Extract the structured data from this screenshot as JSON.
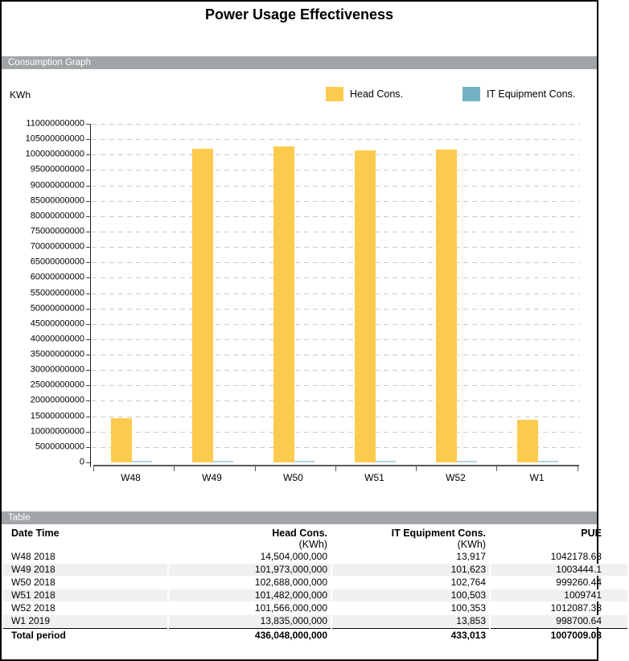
{
  "page": {
    "title": "Power Usage Effectiveness"
  },
  "sections": {
    "graph": "Consumption Graph",
    "table": "Table"
  },
  "chart": {
    "unit_label": "KWh",
    "legend": [
      {
        "label": "Head Cons.",
        "color": "#FCCB4D"
      },
      {
        "label": "IT Equipment Cons.",
        "color": "#74B2C3"
      }
    ]
  },
  "chart_data": {
    "type": "bar",
    "title": "Consumption Graph",
    "xlabel": "",
    "ylabel": "KWh",
    "categories": [
      "W48",
      "W49",
      "W50",
      "W51",
      "W52",
      "W1"
    ],
    "series": [
      {
        "name": "Head Cons.",
        "color": "#FCCB4D",
        "values": [
          14504000000,
          101973000000,
          102688000000,
          101482000000,
          101566000000,
          13835000000
        ]
      },
      {
        "name": "IT Equipment Cons.",
        "color": "#74B2C3",
        "values": [
          13917,
          101623,
          102764,
          100503,
          100353,
          13853
        ]
      }
    ],
    "ylim": [
      0,
      110000000000
    ],
    "ytick_step": 5000000000,
    "yticks": [
      0,
      5000000000,
      10000000000,
      15000000000,
      20000000000,
      25000000000,
      30000000000,
      35000000000,
      40000000000,
      45000000000,
      50000000000,
      55000000000,
      60000000000,
      65000000000,
      70000000000,
      75000000000,
      80000000000,
      85000000000,
      90000000000,
      95000000000,
      100000000000,
      105000000000,
      110000000000
    ],
    "grid": true,
    "legend_position": "top-right"
  },
  "table": {
    "headers": [
      {
        "line1": "Date Time",
        "line2": ""
      },
      {
        "line1": "Head Cons.",
        "line2": "(KWh)"
      },
      {
        "line1": "IT Equipment Cons.",
        "line2": "(KWh)"
      },
      {
        "line1": "PUE",
        "line2": ""
      }
    ],
    "rows": [
      [
        "W48 2018",
        "14,504,000,000",
        "13,917",
        "1042178.63"
      ],
      [
        "W49 2018",
        "101,973,000,000",
        "101,623",
        "1003444.1"
      ],
      [
        "W50 2018",
        "102,688,000,000",
        "102,764",
        "999260.44"
      ],
      [
        "W51 2018",
        "101,482,000,000",
        "100,503",
        "1009741"
      ],
      [
        "W52 2018",
        "101,566,000,000",
        "100,353",
        "1012087.33"
      ],
      [
        "W1 2019",
        "13,835,000,000",
        "13,853",
        "998700.64"
      ]
    ],
    "total_row": [
      "Total period",
      "436,048,000,000",
      "433,013",
      "1007009.03"
    ]
  }
}
